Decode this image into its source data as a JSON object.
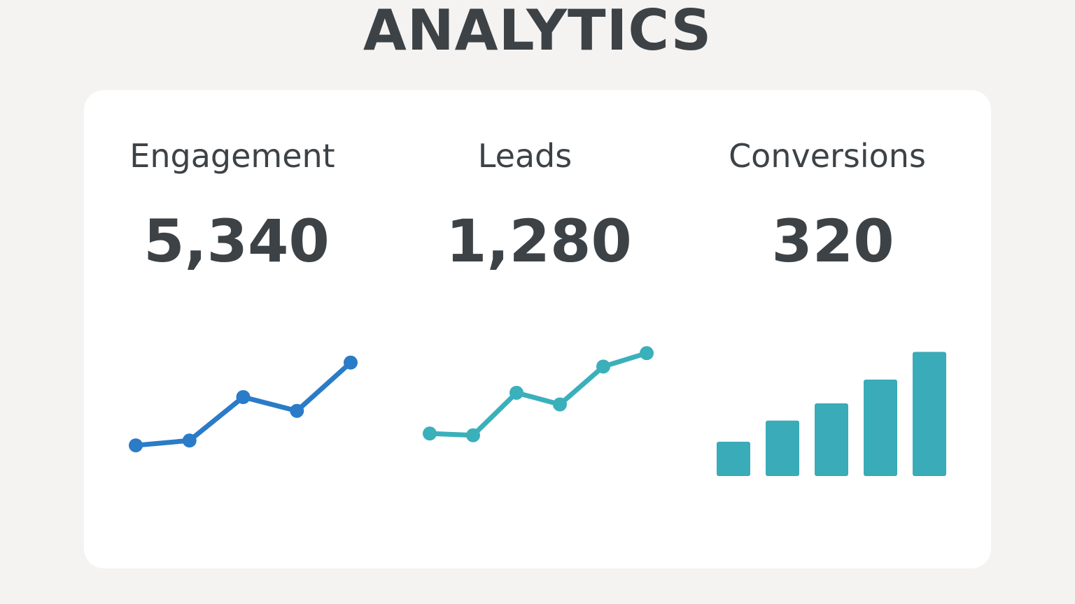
{
  "header": {
    "title": "ANALYTICS"
  },
  "metrics": [
    {
      "label": "Engagement",
      "value": "5,340"
    },
    {
      "label": "Leads",
      "value": "1,280"
    },
    {
      "label": "Conversions",
      "value": "320"
    }
  ],
  "colors": {
    "engagement": "#2a7bc8",
    "leads": "#3ab0bb",
    "conversions": "#3aabb8",
    "text": "#3d4246"
  },
  "chart_data": [
    {
      "type": "line",
      "x": [
        1,
        2,
        3,
        4,
        5
      ],
      "values": [
        0.5,
        1.2,
        7.5,
        5.5,
        12.5
      ],
      "ylim": [
        0,
        15
      ]
    },
    {
      "type": "line",
      "x": [
        1,
        2,
        3,
        4,
        5,
        6
      ],
      "values": [
        2.5,
        2.2,
        9.5,
        7.5,
        14.0,
        16.3
      ],
      "ylim": [
        0,
        18
      ]
    },
    {
      "type": "bar",
      "categories": [
        "1",
        "2",
        "3",
        "4",
        "5"
      ],
      "values": [
        2.6,
        4.2,
        5.5,
        7.3,
        9.4
      ],
      "ylim": [
        0,
        10
      ]
    }
  ]
}
